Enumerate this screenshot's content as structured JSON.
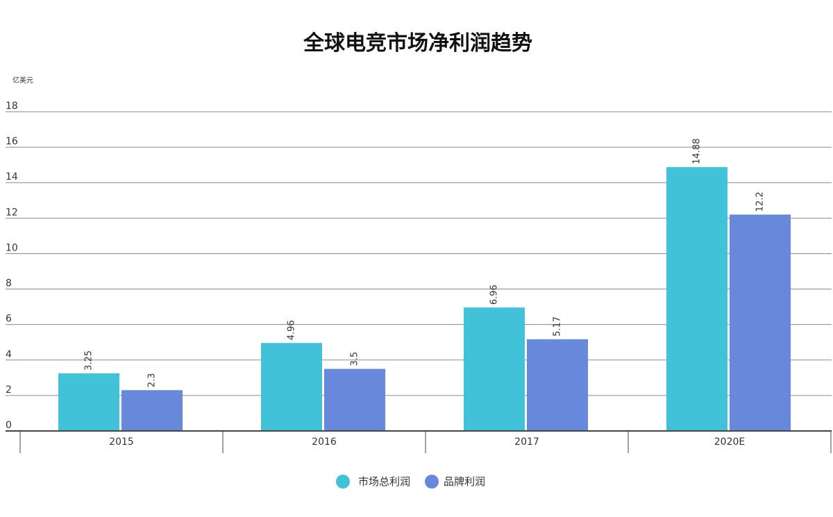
{
  "chart_data": {
    "type": "bar",
    "title": "全球电竞市场净利润趋势",
    "unit_label": "亿美元",
    "categories": [
      "2015",
      "2016",
      "2017",
      "2020E"
    ],
    "series": [
      {
        "name": "市场总利润",
        "color": "#42c2d8",
        "values": [
          3.25,
          4.96,
          6.96,
          14.88
        ],
        "labels": [
          "3.25",
          "4.96",
          "6.96",
          "14.88"
        ]
      },
      {
        "name": "品牌利润",
        "color": "#6888dc",
        "values": [
          2.3,
          3.5,
          5.17,
          12.2
        ],
        "labels": [
          "2.3",
          "3.5",
          "5.17",
          "12.2"
        ]
      }
    ],
    "ylim": [
      0,
      18
    ],
    "yticks": [
      "0",
      "2",
      "4",
      "6",
      "8",
      "10",
      "12",
      "14",
      "16",
      "18"
    ],
    "grid": true,
    "legend": "bottom-center"
  }
}
